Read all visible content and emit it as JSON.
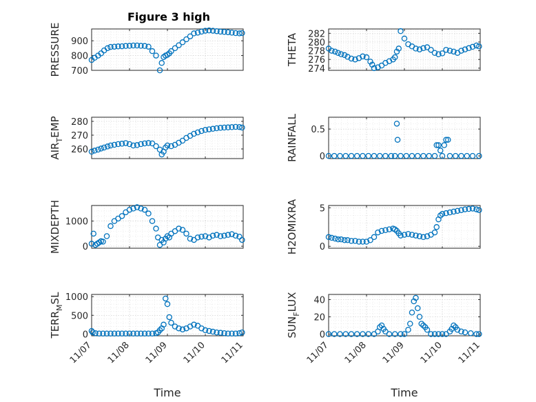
{
  "figure": {
    "title": "Figure 3 high"
  },
  "colors": {
    "marker": "#0072BD",
    "axes": "#262626",
    "grid": "#c8c8c8"
  },
  "chart_data": [
    {
      "type": "scatter",
      "ylabel": "PRESSURE",
      "ylabel_sub": "",
      "ylabel_tail": "",
      "ylim": [
        700,
        980
      ],
      "yticks": [
        700,
        800,
        900
      ],
      "ytick_labels": [
        "700",
        "800",
        "900"
      ],
      "xlim": [
        0,
        4
      ],
      "xtick_labels": [
        "11/07",
        "11/08",
        "11/09",
        "11/10",
        "11/11"
      ],
      "xlabel": "Time",
      "x": [
        0.0,
        0.08,
        0.17,
        0.25,
        0.33,
        0.42,
        0.5,
        0.6,
        0.7,
        0.8,
        0.9,
        1.0,
        1.1,
        1.2,
        1.3,
        1.4,
        1.5,
        1.6,
        1.7,
        1.8,
        1.85,
        1.9,
        1.95,
        2.0,
        2.05,
        2.1,
        2.2,
        2.3,
        2.4,
        2.5,
        2.6,
        2.7,
        2.8,
        2.9,
        3.0,
        3.1,
        3.2,
        3.3,
        3.4,
        3.5,
        3.6,
        3.7,
        3.8,
        3.9,
        3.97
      ],
      "y": [
        770,
        785,
        800,
        815,
        835,
        850,
        858,
        860,
        862,
        863,
        865,
        866,
        868,
        868,
        866,
        865,
        860,
        830,
        800,
        700,
        750,
        790,
        800,
        805,
        815,
        830,
        850,
        870,
        890,
        910,
        930,
        950,
        955,
        962,
        968,
        970,
        968,
        965,
        962,
        960,
        958,
        955,
        952,
        950,
        952
      ]
    },
    {
      "type": "scatter",
      "ylabel": "THETA",
      "ylabel_sub": "",
      "ylabel_tail": "",
      "ylim": [
        273.5,
        283
      ],
      "yticks": [
        274,
        276,
        278,
        280,
        282
      ],
      "ytick_labels": [
        "274",
        "276",
        "278",
        "280",
        "282"
      ],
      "xlim": [
        0,
        4
      ],
      "xtick_labels": [
        "11/07",
        "11/08",
        "11/09",
        "11/10",
        "11/11"
      ],
      "xlabel": "Time",
      "x": [
        0.0,
        0.08,
        0.17,
        0.25,
        0.33,
        0.42,
        0.5,
        0.6,
        0.7,
        0.8,
        0.9,
        1.0,
        1.1,
        1.15,
        1.2,
        1.3,
        1.4,
        1.5,
        1.6,
        1.7,
        1.75,
        1.8,
        1.85,
        1.9,
        2.0,
        2.1,
        2.2,
        2.3,
        2.4,
        2.5,
        2.6,
        2.7,
        2.8,
        2.9,
        3.0,
        3.1,
        3.2,
        3.3,
        3.4,
        3.5,
        3.6,
        3.7,
        3.8,
        3.9,
        3.97
      ],
      "y": [
        278.5,
        278.0,
        277.8,
        277.5,
        277.2,
        277.0,
        276.6,
        276.2,
        276.0,
        276.3,
        276.7,
        276.5,
        275.5,
        274.8,
        274.0,
        274.2,
        274.6,
        275.2,
        275.6,
        276.0,
        276.5,
        277.8,
        278.5,
        282.5,
        280.8,
        279.5,
        279.0,
        278.5,
        278.3,
        278.6,
        278.8,
        278.2,
        277.5,
        277.2,
        277.4,
        278.2,
        278.0,
        277.8,
        277.5,
        278.0,
        278.3,
        278.6,
        278.9,
        279.2,
        279.0
      ]
    },
    {
      "type": "scatter",
      "ylabel": "AIR",
      "ylabel_sub": "T",
      "ylabel_tail": "EMP",
      "ylim": [
        253,
        283
      ],
      "yticks": [
        260,
        270,
        280
      ],
      "ytick_labels": [
        "260",
        "270",
        "280"
      ],
      "xlim": [
        0,
        4
      ],
      "xtick_labels": [
        "11/07",
        "11/08",
        "11/09",
        "11/10",
        "11/11"
      ],
      "xlabel": "Time",
      "x": [
        0.0,
        0.08,
        0.17,
        0.25,
        0.33,
        0.42,
        0.5,
        0.6,
        0.7,
        0.8,
        0.9,
        1.0,
        1.1,
        1.2,
        1.3,
        1.4,
        1.5,
        1.6,
        1.7,
        1.8,
        1.85,
        1.9,
        1.95,
        2.0,
        2.1,
        2.2,
        2.3,
        2.4,
        2.5,
        2.6,
        2.7,
        2.8,
        2.9,
        3.0,
        3.1,
        3.2,
        3.3,
        3.4,
        3.5,
        3.6,
        3.7,
        3.8,
        3.9,
        3.97
      ],
      "y": [
        258.0,
        258.8,
        259.5,
        260.3,
        261.0,
        261.8,
        262.5,
        263.0,
        263.5,
        263.8,
        264.2,
        263.5,
        262.5,
        262.8,
        263.5,
        264.0,
        264.3,
        264.0,
        262.0,
        259.5,
        256.0,
        258.0,
        261.0,
        262.5,
        262.0,
        263.0,
        264.5,
        266.0,
        268.0,
        269.5,
        271.0,
        272.0,
        273.0,
        273.8,
        274.2,
        274.6,
        275.0,
        275.3,
        275.5,
        275.6,
        275.8,
        276.0,
        275.9,
        275.5
      ]
    },
    {
      "type": "scatter",
      "ylabel": "RAINFALL",
      "ylabel_sub": "",
      "ylabel_tail": "",
      "ylim": [
        -0.05,
        0.72
      ],
      "yticks": [
        0,
        0.5
      ],
      "ytick_labels": [
        "0",
        "0.5"
      ],
      "xlim": [
        0,
        4
      ],
      "xtick_labels": [
        "11/07",
        "11/08",
        "11/09",
        "11/10",
        "11/11"
      ],
      "xlabel": "Time",
      "x": [
        0.0,
        0.15,
        0.3,
        0.45,
        0.6,
        0.75,
        0.9,
        1.05,
        1.2,
        1.35,
        1.5,
        1.65,
        1.75,
        1.8,
        1.82,
        1.9,
        2.05,
        2.2,
        2.35,
        2.5,
        2.65,
        2.8,
        2.85,
        2.9,
        2.95,
        3.0,
        3.05,
        3.1,
        3.15,
        3.2,
        3.35,
        3.5,
        3.65,
        3.8,
        3.97
      ],
      "y": [
        0,
        0,
        0,
        0,
        0,
        0,
        0,
        0,
        0,
        0,
        0,
        0,
        0,
        0.6,
        0.3,
        0,
        0,
        0,
        0,
        0,
        0,
        0,
        0.2,
        0.2,
        0.1,
        0,
        0.2,
        0.3,
        0.3,
        0,
        0,
        0,
        0,
        0,
        0
      ]
    },
    {
      "type": "scatter",
      "ylabel": "MIXDEPTH",
      "ylabel_sub": "",
      "ylabel_tail": "",
      "ylim": [
        -80,
        1620
      ],
      "yticks": [
        0,
        1000
      ],
      "ytick_labels": [
        "0",
        "1000"
      ],
      "xlim": [
        0,
        4
      ],
      "xtick_labels": [
        "11/07",
        "11/08",
        "11/09",
        "11/10",
        "11/11"
      ],
      "xlabel": "Time",
      "x": [
        0.0,
        0.05,
        0.1,
        0.15,
        0.2,
        0.25,
        0.3,
        0.4,
        0.5,
        0.6,
        0.7,
        0.8,
        0.9,
        1.0,
        1.1,
        1.2,
        1.3,
        1.4,
        1.5,
        1.6,
        1.7,
        1.75,
        1.8,
        1.85,
        1.9,
        1.95,
        2.0,
        2.05,
        2.1,
        2.2,
        2.3,
        2.4,
        2.5,
        2.6,
        2.7,
        2.8,
        2.9,
        3.0,
        3.1,
        3.2,
        3.3,
        3.4,
        3.5,
        3.6,
        3.7,
        3.8,
        3.9,
        3.97
      ],
      "y": [
        100,
        500,
        50,
        100,
        150,
        200,
        180,
        400,
        800,
        1000,
        1100,
        1200,
        1350,
        1450,
        1500,
        1550,
        1500,
        1450,
        1300,
        1000,
        700,
        350,
        50,
        250,
        150,
        300,
        400,
        350,
        500,
        600,
        700,
        650,
        500,
        300,
        250,
        350,
        380,
        400,
        350,
        420,
        450,
        400,
        420,
        450,
        480,
        420,
        380,
        250
      ]
    },
    {
      "type": "scatter",
      "ylabel": "H2OMIXRA",
      "ylabel_sub": "",
      "ylabel_tail": "",
      "ylim": [
        -0.25,
        5.3
      ],
      "yticks": [
        0,
        5
      ],
      "ytick_labels": [
        "0",
        "5"
      ],
      "xlim": [
        0,
        4
      ],
      "xtick_labels": [
        "11/07",
        "11/08",
        "11/09",
        "11/10",
        "11/11"
      ],
      "xlabel": "Time",
      "x": [
        0.0,
        0.08,
        0.17,
        0.25,
        0.33,
        0.42,
        0.5,
        0.6,
        0.7,
        0.8,
        0.9,
        1.0,
        1.1,
        1.2,
        1.3,
        1.4,
        1.5,
        1.6,
        1.7,
        1.75,
        1.8,
        1.85,
        1.9,
        2.0,
        2.1,
        2.2,
        2.3,
        2.4,
        2.5,
        2.6,
        2.7,
        2.8,
        2.85,
        2.9,
        2.95,
        3.0,
        3.1,
        3.2,
        3.3,
        3.4,
        3.5,
        3.6,
        3.7,
        3.8,
        3.9,
        3.97
      ],
      "y": [
        1.2,
        1.1,
        1.0,
        0.9,
        0.9,
        0.8,
        0.8,
        0.7,
        0.7,
        0.6,
        0.6,
        0.6,
        0.8,
        1.2,
        1.8,
        2.0,
        2.1,
        2.2,
        2.3,
        2.2,
        2.0,
        1.7,
        1.4,
        1.5,
        1.6,
        1.5,
        1.4,
        1.3,
        1.2,
        1.3,
        1.5,
        1.8,
        2.5,
        3.5,
        4.0,
        4.2,
        4.3,
        4.4,
        4.5,
        4.6,
        4.7,
        4.8,
        4.85,
        4.9,
        4.8,
        4.7
      ]
    },
    {
      "type": "scatter",
      "ylabel": "TERR",
      "ylabel_sub": "M",
      "ylabel_tail": "SL",
      "ylim": [
        -50,
        1060
      ],
      "yticks": [
        0,
        500,
        1000
      ],
      "ytick_labels": [
        "0",
        "500",
        "1000"
      ],
      "xlim": [
        0,
        4
      ],
      "xtick_labels": [
        "11/07",
        "11/08",
        "11/09",
        "11/10",
        "11/11"
      ],
      "xlabel": "Time",
      "x": [
        0.0,
        0.03,
        0.1,
        0.2,
        0.3,
        0.4,
        0.5,
        0.6,
        0.7,
        0.8,
        0.9,
        1.0,
        1.1,
        1.2,
        1.3,
        1.4,
        1.5,
        1.6,
        1.7,
        1.75,
        1.8,
        1.85,
        1.9,
        1.95,
        2.0,
        2.05,
        2.1,
        2.2,
        2.3,
        2.4,
        2.5,
        2.6,
        2.7,
        2.8,
        2.9,
        3.0,
        3.1,
        3.2,
        3.3,
        3.4,
        3.5,
        3.6,
        3.7,
        3.8,
        3.9,
        3.97
      ],
      "y": [
        80,
        40,
        20,
        10,
        10,
        10,
        10,
        10,
        10,
        10,
        10,
        10,
        10,
        10,
        10,
        10,
        10,
        10,
        20,
        40,
        100,
        150,
        250,
        950,
        800,
        450,
        300,
        200,
        150,
        120,
        150,
        200,
        250,
        220,
        150,
        100,
        80,
        60,
        40,
        30,
        20,
        10,
        10,
        10,
        20,
        40
      ]
    },
    {
      "type": "scatter",
      "ylabel": "SUN",
      "ylabel_sub": "F",
      "ylabel_tail": "LUX",
      "ylim": [
        -2,
        46
      ],
      "yticks": [
        0,
        20,
        40
      ],
      "ytick_labels": [
        "0",
        "20",
        "40"
      ],
      "xlim": [
        0,
        4
      ],
      "xtick_labels": [
        "11/07",
        "11/08",
        "11/09",
        "11/10",
        "11/11"
      ],
      "xlabel": "Time",
      "x": [
        0.0,
        0.15,
        0.3,
        0.45,
        0.6,
        0.75,
        0.9,
        1.05,
        1.2,
        1.3,
        1.35,
        1.4,
        1.45,
        1.5,
        1.6,
        1.75,
        1.9,
        2.0,
        2.1,
        2.15,
        2.2,
        2.25,
        2.3,
        2.35,
        2.4,
        2.45,
        2.5,
        2.55,
        2.6,
        2.7,
        2.8,
        2.9,
        3.0,
        3.1,
        3.2,
        3.25,
        3.3,
        3.35,
        3.4,
        3.5,
        3.6,
        3.75,
        3.9,
        3.97
      ],
      "y": [
        0,
        0,
        0,
        0,
        0,
        0,
        0,
        0,
        0,
        3,
        8,
        10,
        6,
        3,
        0,
        0,
        0,
        0,
        5,
        12,
        25,
        38,
        42,
        30,
        20,
        12,
        10,
        8,
        5,
        0,
        0,
        0,
        0,
        0,
        3,
        6,
        10,
        8,
        5,
        3,
        2,
        1,
        0,
        0
      ]
    }
  ]
}
